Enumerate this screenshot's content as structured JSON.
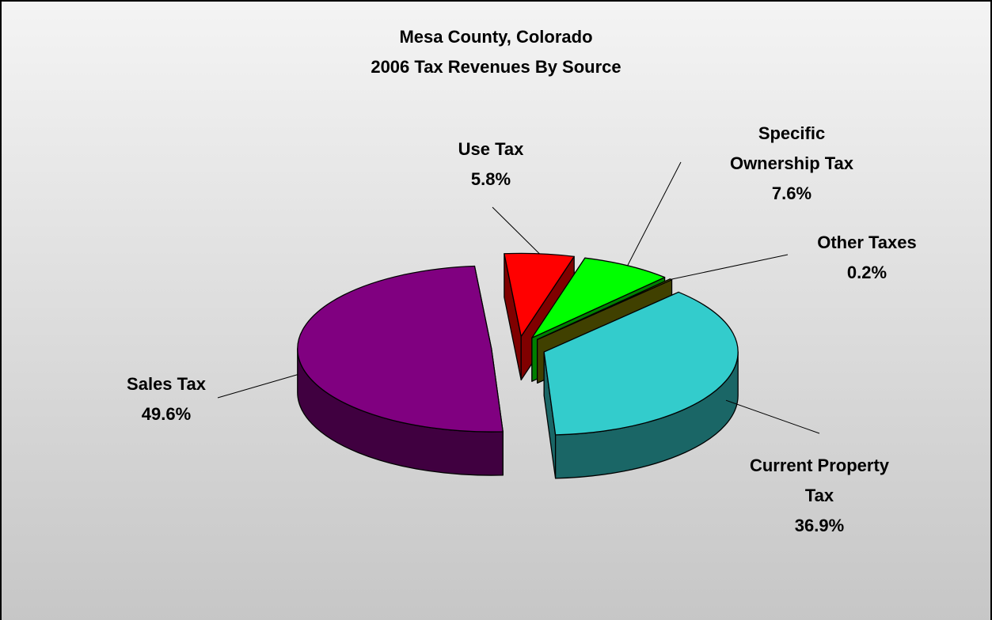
{
  "chart_data": {
    "type": "pie3d",
    "title": "Mesa County, Colorado",
    "subtitle": "2006 Tax Revenues By Source",
    "categories": [
      "Use Tax",
      "Specific Ownership Tax",
      "Other Taxes",
      "Current Property Tax",
      "Sales Tax"
    ],
    "values": [
      5.8,
      7.6,
      0.2,
      36.9,
      49.6
    ],
    "value_labels": [
      "5.8%",
      "7.6%",
      "0.2%",
      "36.9%",
      "49.6%"
    ],
    "colors": [
      "#ff0000",
      "#00ff00",
      "#808000",
      "#33cccc",
      "#800080"
    ]
  }
}
